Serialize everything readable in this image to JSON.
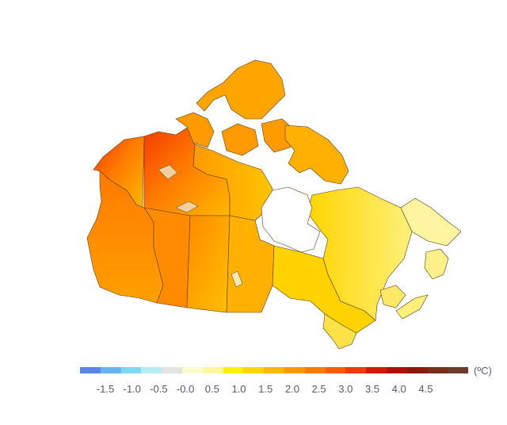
{
  "legend": {
    "unit": "(ºC)",
    "ticks": [
      "-1.5",
      "-1.0",
      "-0.5",
      "-0.0",
      "0.5",
      "1.0",
      "1.5",
      "2.0",
      "2.5",
      "3.0",
      "3.5",
      "4.0",
      "4.5"
    ],
    "colors": [
      "#5b84e8",
      "#67b5f0",
      "#7fd8f2",
      "#b7ecf5",
      "#e3e3e3",
      "#fbfbcf",
      "#fff79d",
      "#fff200",
      "#ffd500",
      "#ffb800",
      "#ff9900",
      "#ff7a00",
      "#ff5b00",
      "#f23a00",
      "#d41800",
      "#b30f00",
      "#8c1a0a",
      "#7a2d18",
      "#6e3c2a"
    ]
  },
  "map": {
    "regions": [
      "Yukon",
      "Northwest Territories",
      "Nunavut",
      "British Columbia",
      "Alberta",
      "Saskatchewan",
      "Manitoba",
      "Ontario",
      "Quebec",
      "Newfoundland and Labrador",
      "New Brunswick",
      "Nova Scotia",
      "Prince Edward Island"
    ],
    "anomaly_range_c": [
      0.5,
      4.0
    ]
  }
}
